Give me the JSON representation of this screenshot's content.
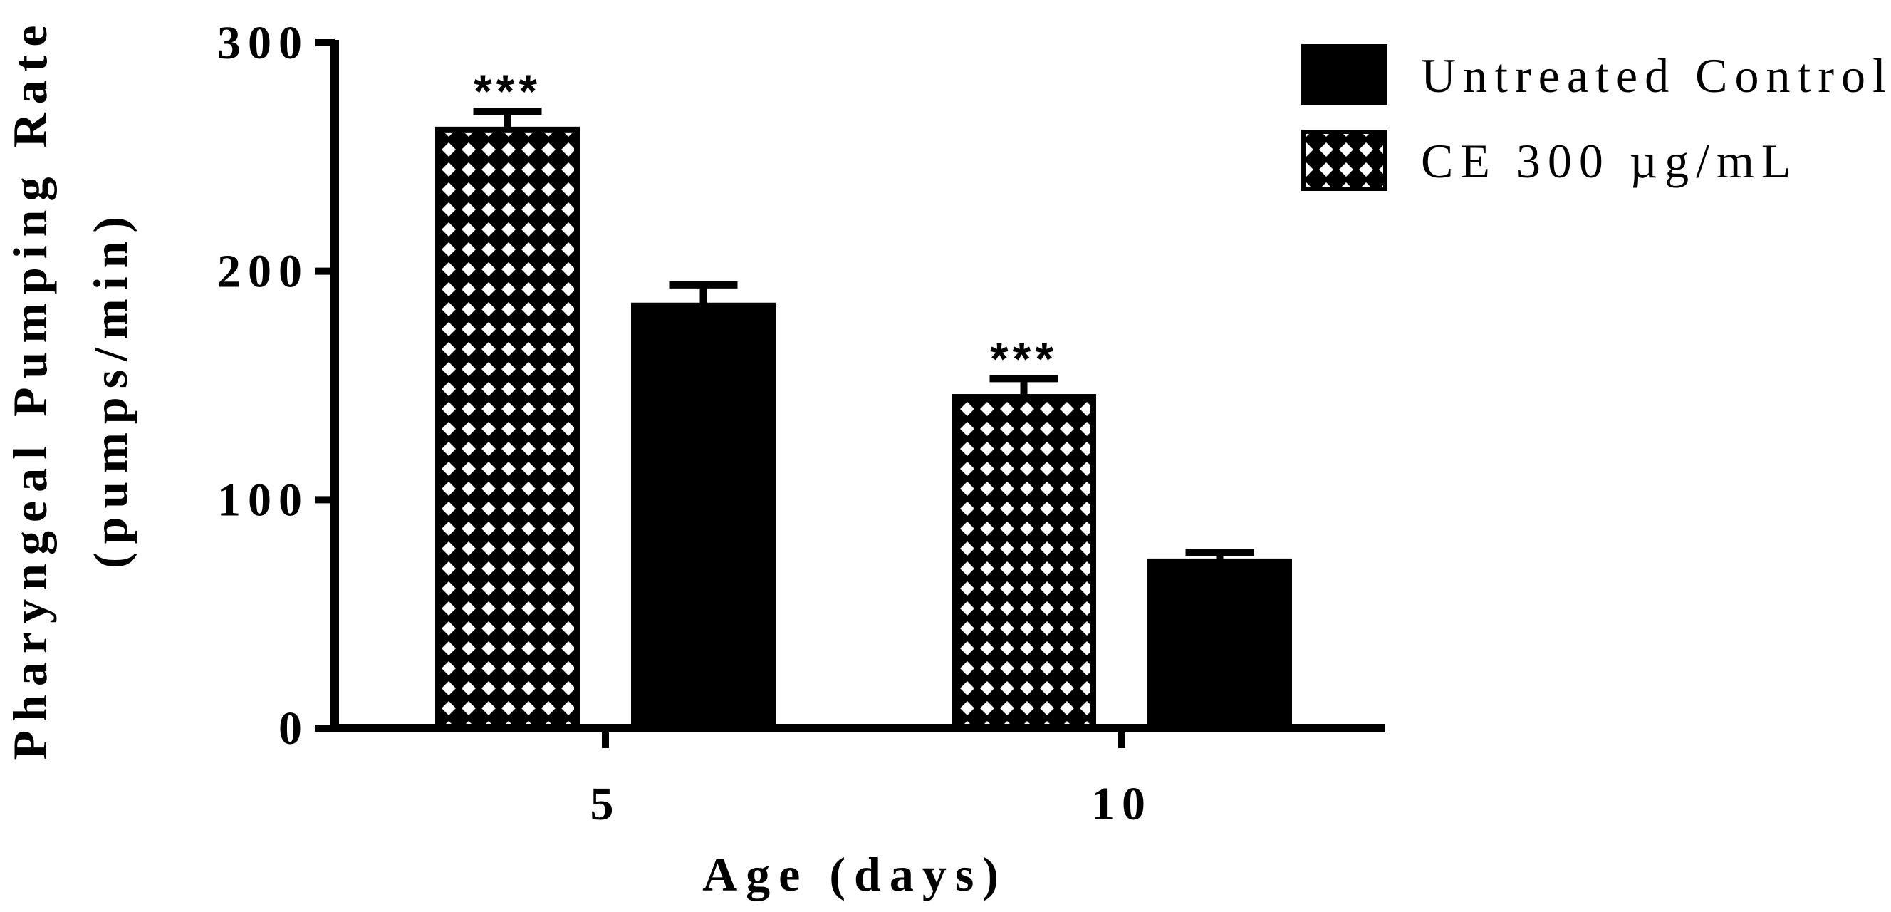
{
  "chart_data": {
    "type": "bar",
    "categories": [
      "5",
      "10"
    ],
    "xlabel": "Age (days)",
    "ylabel": "Pharyngeal Pumping Rate",
    "ylabel_units": "(pumps/min)",
    "ylim": [
      0,
      300
    ],
    "yticks": [
      "0",
      "100",
      "200",
      "300"
    ],
    "series": [
      {
        "name": "CE 300  µg/mL",
        "pattern": "diamond-crosshatch",
        "values": [
          262,
          145
        ],
        "errors": [
          8,
          8
        ],
        "significance": [
          "***",
          "***"
        ]
      },
      {
        "name": "Untreated Control",
        "pattern": "solid",
        "values": [
          185,
          73
        ],
        "errors": [
          9,
          4
        ],
        "significance": [
          "",
          ""
        ]
      }
    ],
    "legend_order": [
      1,
      0
    ],
    "legend_position": "top-right"
  },
  "colors": {
    "bar": "#000000",
    "pattern_fg": "#ffffff",
    "background": "#ffffff"
  }
}
